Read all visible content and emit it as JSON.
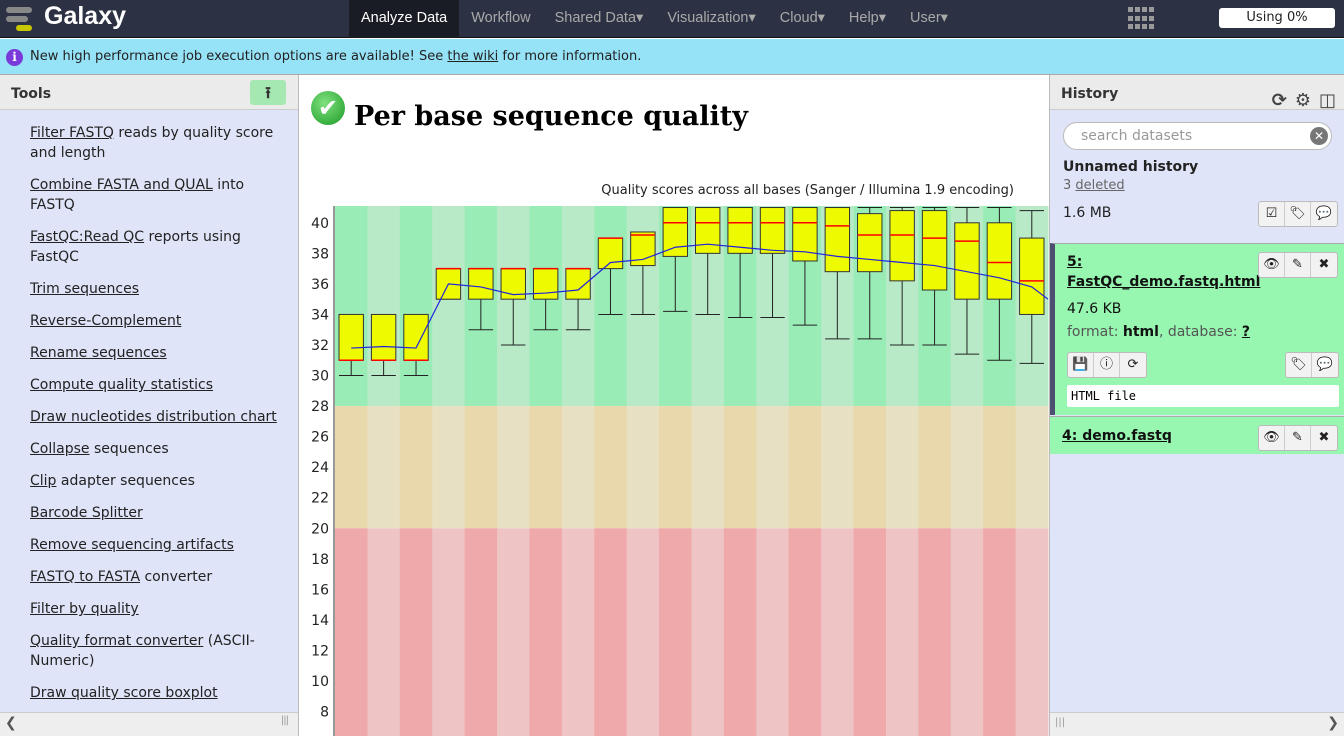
{
  "masthead": {
    "brand": "Galaxy",
    "nav": [
      "Analyze Data",
      "Workflow",
      "Shared Data▾",
      "Visualization▾",
      "Cloud▾",
      "Help▾",
      "User▾"
    ],
    "active": "Analyze Data",
    "quota": "Using 0%"
  },
  "notice": {
    "before": "New high performance job execution options are available! See ",
    "link": "the wiki",
    "after": " for more information."
  },
  "tools": {
    "title": "Tools",
    "items": [
      {
        "link": "Filter FASTQ",
        "rest": " reads by quality score and length"
      },
      {
        "link": "Combine FASTA and QUAL",
        "rest": " into FASTQ"
      },
      {
        "link": "FastQC:Read QC",
        "rest": " reports using FastQC"
      },
      {
        "link": "Trim sequences",
        "rest": ""
      },
      {
        "link": "Reverse-Complement",
        "rest": ""
      },
      {
        "link": "Rename sequences",
        "rest": ""
      },
      {
        "link": "Compute quality statistics",
        "rest": ""
      },
      {
        "link": "Draw nucleotides distribution chart",
        "rest": ""
      },
      {
        "link": "Collapse",
        "rest": " sequences"
      },
      {
        "link": "Clip",
        "rest": " adapter sequences"
      },
      {
        "link": "Barcode Splitter",
        "rest": ""
      },
      {
        "link": "Remove sequencing artifacts",
        "rest": ""
      },
      {
        "link": "FASTQ to FASTA",
        "rest": " converter"
      },
      {
        "link": "Filter by quality",
        "rest": ""
      },
      {
        "link": "Quality format converter",
        "rest": " (ASCII-Numeric)"
      },
      {
        "link": "Draw quality score boxplot",
        "rest": ""
      }
    ]
  },
  "center": {
    "title": "Per base sequence quality"
  },
  "chart_data": {
    "type": "boxplot",
    "title": "Quality scores across all bases (Sanger / Illumina 1.9 encoding)",
    "yticks": [
      8,
      10,
      12,
      14,
      16,
      18,
      20,
      22,
      24,
      26,
      28,
      30,
      32,
      34,
      36,
      38,
      40
    ],
    "ylim": [
      6.4,
      41.1
    ],
    "zones": [
      {
        "from": 28,
        "to": 41.1,
        "color": "#99ecb5",
        "alt": "#b9eac8"
      },
      {
        "from": 20,
        "to": 28,
        "color": "#e8d8ab",
        "alt": "#e8e0c2"
      },
      {
        "from": 6.4,
        "to": 20,
        "color": "#efa9aa",
        "alt": "#eec4c5"
      }
    ],
    "boxes": [
      [
        30,
        31,
        31,
        34,
        34
      ],
      [
        30,
        31,
        31,
        34,
        34
      ],
      [
        30,
        31,
        31,
        34,
        34
      ],
      [
        35,
        35,
        37,
        37,
        37
      ],
      [
        33,
        35,
        37,
        37,
        37
      ],
      [
        32,
        35,
        37,
        37,
        37
      ],
      [
        33,
        35,
        37,
        37,
        37
      ],
      [
        33,
        35,
        37,
        37,
        37
      ],
      [
        34,
        37,
        39,
        39,
        39
      ],
      [
        34,
        37.2,
        39.2,
        39.4,
        39.4
      ],
      [
        34.2,
        37.8,
        40,
        41,
        41
      ],
      [
        34,
        38,
        40,
        41,
        41
      ],
      [
        33.8,
        38,
        40,
        41,
        41
      ],
      [
        33.8,
        38,
        40,
        41,
        41
      ],
      [
        33.3,
        37.5,
        40,
        41,
        41
      ],
      [
        32.4,
        36.8,
        39.8,
        41,
        41
      ],
      [
        32.4,
        36.8,
        39.2,
        40.6,
        41
      ],
      [
        32,
        36.2,
        39.2,
        40.8,
        41
      ],
      [
        32,
        35.6,
        39,
        40.8,
        41
      ],
      [
        31.4,
        35,
        38.8,
        40,
        41
      ],
      [
        31,
        35,
        37.4,
        40,
        41
      ],
      [
        30.8,
        34,
        36.2,
        39,
        40.8
      ]
    ],
    "mean": [
      31.8,
      31.9,
      31.8,
      36,
      35.8,
      35.3,
      35.4,
      35.6,
      37.4,
      37.6,
      38.4,
      38.6,
      38.4,
      38.2,
      38.1,
      37.8,
      37.6,
      37.4,
      37.2,
      36.8,
      36.4,
      35.8
    ],
    "colors": {
      "box": "#eefa00",
      "median": "#ff0000",
      "mean": "#2222dd"
    }
  },
  "history": {
    "title": "History",
    "search_placeholder": "search datasets",
    "name": "Unnamed history",
    "deleted_count": "3",
    "deleted_link": "deleted",
    "size": "1.6 MB",
    "datasets": [
      {
        "title": "5: FastQC_demo.fastq.html",
        "size": "47.6 KB",
        "format_label": "format: ",
        "format": "html",
        "db_label": ", database: ",
        "db": "?",
        "peek": "HTML file"
      },
      {
        "title": "4: demo.fastq"
      }
    ]
  }
}
